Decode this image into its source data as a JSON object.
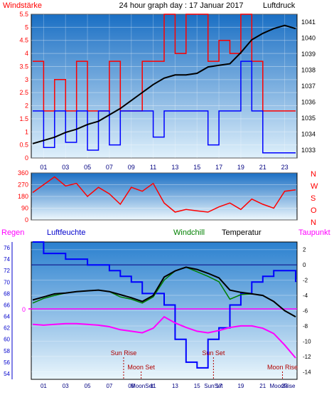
{
  "panel_top": {
    "title": "24 hour graph day : 17 Januar 2017",
    "left_label": "Windstärke",
    "right_label": "Luftdruck"
  },
  "panel_bottom": {
    "legend_regen": "Regen",
    "legend_luftfeuchte": "Luftfeuchte",
    "legend_windchill": "Windchill",
    "legend_temperatur": "Temperatur",
    "legend_taupunkt": "Taupunkt"
  },
  "colors": {
    "pressure": "#000000",
    "wind_gust": "#ff0000",
    "wind_speed": "#0000ff",
    "direction": "#ff0000",
    "humidity": "#0000ff",
    "temperature": "#000000",
    "windchill": "#008000",
    "dewpoint": "#ff00ff",
    "rain": "#ff00ff"
  },
  "chart_data": [
    {
      "type": "line",
      "x_ticks": [
        "01",
        "03",
        "05",
        "07",
        "09",
        "11",
        "13",
        "15",
        "17",
        "19",
        "21",
        "23"
      ],
      "y_left_ticks": [
        "0",
        "0.5",
        "1",
        "1.5",
        "2",
        "2.5",
        "3",
        "3.5",
        "4",
        "4.5",
        "5",
        "5.5"
      ],
      "y_left_range": [
        0,
        5.5
      ],
      "y_right_ticks": [
        "1033",
        "1034",
        "1035",
        "1036",
        "1037",
        "1038",
        "1039",
        "1040",
        "1041"
      ],
      "y_right_range": [
        1032.5,
        1041.5
      ],
      "series": [
        {
          "axis": "right",
          "points": [
            [
              0,
              1033.4
            ],
            [
              1,
              1033.6
            ],
            [
              2,
              1033.8
            ],
            [
              3,
              1034.1
            ],
            [
              4,
              1034.3
            ],
            [
              5,
              1034.6
            ],
            [
              6,
              1034.8
            ],
            [
              7,
              1035.2
            ],
            [
              8,
              1035.6
            ],
            [
              9,
              1036.1
            ],
            [
              10,
              1036.6
            ],
            [
              11,
              1037.1
            ],
            [
              12,
              1037.5
            ],
            [
              13,
              1037.7
            ],
            [
              14,
              1037.7
            ],
            [
              15,
              1037.8
            ],
            [
              16,
              1038.2
            ],
            [
              17,
              1038.3
            ],
            [
              18,
              1038.4
            ],
            [
              19,
              1039.1
            ],
            [
              20,
              1039.9
            ],
            [
              21,
              1040.3
            ],
            [
              22,
              1040.6
            ],
            [
              23,
              1040.8
            ],
            [
              24,
              1040.6
            ]
          ]
        },
        {
          "axis": "left",
          "points": [
            [
              0,
              3.7
            ],
            [
              1,
              1.8
            ],
            [
              2,
              3.0
            ],
            [
              3,
              1.8
            ],
            [
              4,
              3.7
            ],
            [
              5,
              1.8
            ],
            [
              6,
              1.8
            ],
            [
              7,
              3.7
            ],
            [
              8,
              1.8
            ],
            [
              9,
              1.8
            ],
            [
              10,
              3.7
            ],
            [
              11,
              3.7
            ],
            [
              12,
              5.5
            ],
            [
              13,
              4.0
            ],
            [
              14,
              5.5
            ],
            [
              15,
              5.5
            ],
            [
              16,
              3.7
            ],
            [
              17,
              4.5
            ],
            [
              18,
              4.0
            ],
            [
              19,
              5.5
            ],
            [
              20,
              3.7
            ],
            [
              21,
              1.8
            ],
            [
              22,
              1.8
            ],
            [
              23,
              1.8
            ],
            [
              24,
              1.8
            ]
          ]
        },
        {
          "axis": "left",
          "points": [
            [
              0,
              1.8
            ],
            [
              1,
              0.4
            ],
            [
              2,
              1.8
            ],
            [
              3,
              0.6
            ],
            [
              4,
              1.8
            ],
            [
              5,
              0.3
            ],
            [
              6,
              1.8
            ],
            [
              7,
              0.5
            ],
            [
              8,
              1.8
            ],
            [
              9,
              1.8
            ],
            [
              10,
              1.8
            ],
            [
              11,
              0.8
            ],
            [
              12,
              1.8
            ],
            [
              13,
              1.8
            ],
            [
              14,
              1.8
            ],
            [
              15,
              1.8
            ],
            [
              16,
              0.5
            ],
            [
              17,
              1.8
            ],
            [
              18,
              1.8
            ],
            [
              19,
              3.7
            ],
            [
              20,
              1.8
            ],
            [
              21,
              0.2
            ],
            [
              22,
              0.2
            ],
            [
              23,
              0.2
            ],
            [
              24,
              0.2
            ]
          ]
        }
      ]
    },
    {
      "type": "line",
      "y_ticks": [
        "0",
        "90",
        "180",
        "270",
        "360"
      ],
      "y_range": [
        0,
        360
      ],
      "compass_labels": [
        "N",
        "W",
        "S",
        "O",
        "N"
      ],
      "series": [
        {
          "points": [
            [
              0,
              210
            ],
            [
              1,
              270
            ],
            [
              2,
              330
            ],
            [
              3,
              260
            ],
            [
              4,
              280
            ],
            [
              5,
              180
            ],
            [
              6,
              250
            ],
            [
              7,
              200
            ],
            [
              8,
              120
            ],
            [
              9,
              250
            ],
            [
              10,
              220
            ],
            [
              11,
              280
            ],
            [
              12,
              130
            ],
            [
              13,
              60
            ],
            [
              14,
              80
            ],
            [
              15,
              70
            ],
            [
              16,
              60
            ],
            [
              17,
              100
            ],
            [
              18,
              130
            ],
            [
              19,
              80
            ],
            [
              20,
              160
            ],
            [
              21,
              120
            ],
            [
              22,
              90
            ],
            [
              23,
              220
            ],
            [
              24,
              230
            ]
          ]
        }
      ]
    },
    {
      "type": "line",
      "x_ticks": [
        "01",
        "03",
        "05",
        "07",
        "09",
        "11",
        "13",
        "15",
        "17",
        "19",
        "21",
        "23"
      ],
      "y_left_ticks": [
        "54",
        "56",
        "58",
        "60",
        "62",
        "64",
        "66",
        "68",
        "70",
        "72",
        "74",
        "76"
      ],
      "y_left_range": [
        53,
        77
      ],
      "y_right_ticks": [
        "2",
        "0",
        "-2",
        "-4",
        "-6",
        "-8",
        "-10",
        "-12",
        "-14"
      ],
      "y_right_range": [
        -15,
        3
      ],
      "rain_label": "0",
      "series": [
        {
          "axis": "left",
          "points": [
            [
              0,
              77
            ],
            [
              1,
              75
            ],
            [
              2,
              75
            ],
            [
              3,
              74
            ],
            [
              4,
              74
            ],
            [
              5,
              73
            ],
            [
              6,
              73
            ],
            [
              7,
              72
            ],
            [
              8,
              71
            ],
            [
              9,
              70
            ],
            [
              10,
              68
            ],
            [
              11,
              68
            ],
            [
              12,
              66
            ],
            [
              13,
              60
            ],
            [
              14,
              56
            ],
            [
              15,
              55
            ],
            [
              16,
              60
            ],
            [
              17,
              62
            ],
            [
              18,
              66
            ],
            [
              19,
              68
            ],
            [
              20,
              70
            ],
            [
              21,
              71
            ],
            [
              22,
              72
            ],
            [
              23,
              72
            ],
            [
              24,
              70
            ]
          ]
        },
        {
          "axis": "right",
          "points": [
            [
              0,
              -4.6
            ],
            [
              1,
              -4.2
            ],
            [
              2,
              -3.8
            ],
            [
              3,
              -3.7
            ],
            [
              4,
              -3.5
            ],
            [
              5,
              -3.4
            ],
            [
              6,
              -3.3
            ],
            [
              7,
              -3.5
            ],
            [
              8,
              -3.9
            ],
            [
              9,
              -4.3
            ],
            [
              10,
              -4.8
            ],
            [
              11,
              -4.0
            ],
            [
              12,
              -1.6
            ],
            [
              13,
              -0.8
            ],
            [
              14,
              -0.3
            ],
            [
              15,
              -0.6
            ],
            [
              16,
              -1.1
            ],
            [
              17,
              -1.7
            ],
            [
              18,
              -3.3
            ],
            [
              19,
              -3.6
            ],
            [
              20,
              -3.8
            ],
            [
              21,
              -4.0
            ],
            [
              22,
              -4.8
            ],
            [
              23,
              -6.0
            ],
            [
              24,
              -6.8
            ]
          ]
        },
        {
          "axis": "right",
          "points": [
            [
              0,
              -5.0
            ],
            [
              1,
              -4.4
            ],
            [
              2,
              -4.0
            ],
            [
              3,
              -3.7
            ],
            [
              4,
              -3.5
            ],
            [
              5,
              -3.4
            ],
            [
              6,
              -3.3
            ],
            [
              7,
              -3.5
            ],
            [
              8,
              -4.2
            ],
            [
              9,
              -4.5
            ],
            [
              10,
              -5.0
            ],
            [
              11,
              -4.2
            ],
            [
              12,
              -2.0
            ],
            [
              13,
              -0.8
            ],
            [
              14,
              -0.3
            ],
            [
              15,
              -0.9
            ],
            [
              16,
              -1.5
            ],
            [
              17,
              -2.2
            ],
            [
              18,
              -4.5
            ],
            [
              19,
              -3.9
            ],
            [
              20,
              -3.8
            ],
            [
              21,
              -4.0
            ],
            [
              22,
              -4.8
            ],
            [
              23,
              -6.0
            ],
            [
              24,
              -6.8
            ]
          ]
        },
        {
          "axis": "right",
          "points": [
            [
              0,
              -7.8
            ],
            [
              1,
              -7.9
            ],
            [
              2,
              -7.8
            ],
            [
              3,
              -7.7
            ],
            [
              4,
              -7.7
            ],
            [
              5,
              -7.8
            ],
            [
              6,
              -7.9
            ],
            [
              7,
              -8.1
            ],
            [
              8,
              -8.5
            ],
            [
              9,
              -8.7
            ],
            [
              10,
              -8.9
            ],
            [
              11,
              -8.3
            ],
            [
              12,
              -6.8
            ],
            [
              13,
              -7.6
            ],
            [
              14,
              -8.2
            ],
            [
              15,
              -8.7
            ],
            [
              16,
              -8.9
            ],
            [
              17,
              -8.6
            ],
            [
              18,
              -8.2
            ],
            [
              19,
              -8.0
            ],
            [
              20,
              -8.0
            ],
            [
              21,
              -8.3
            ],
            [
              22,
              -9.0
            ],
            [
              23,
              -10.5
            ],
            [
              24,
              -12.2
            ]
          ]
        }
      ],
      "annotations": [
        {
          "text": "Sun Rise",
          "hour": 8.3,
          "row": "upper"
        },
        {
          "text": "Moon Set",
          "hour": 9.9,
          "row": "middle"
        },
        {
          "text": "Sun Set",
          "hour": 16.5,
          "row": "upper"
        },
        {
          "text": "Moon Rise",
          "hour": 22.8,
          "row": "middle"
        }
      ],
      "x_overlay_labels": [
        "MoonSet",
        "SunSet",
        "MoonRise"
      ]
    }
  ]
}
